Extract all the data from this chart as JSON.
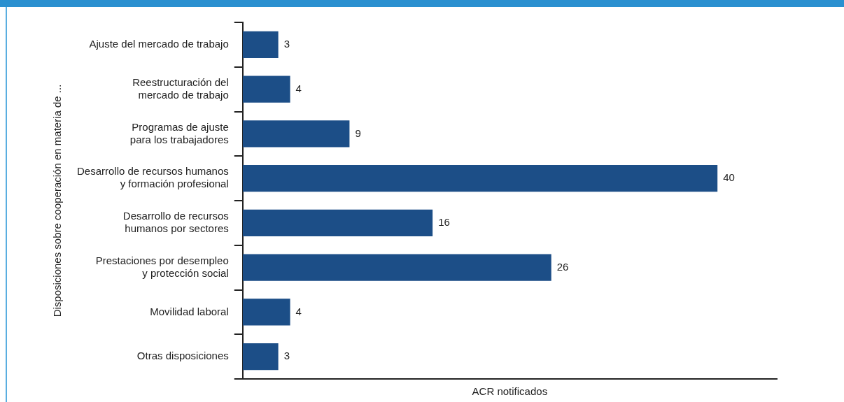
{
  "chart_data": {
    "type": "bar",
    "orientation": "horizontal",
    "ylabel": "Disposiciones sobre cooperación en materia de ...",
    "xlabel": "ACR notificados",
    "categories": [
      "Ajuste del mercado de trabajo",
      "Reestructuración del\nmercado de trabajo",
      "Programas de ajuste\npara los trabajadores",
      "Desarrollo de recursos humanos\ny formación profesional",
      "Desarrollo de recursos\nhumanos por sectores",
      "Prestaciones por desempleo\ny protección social",
      "Movilidad laboral",
      "Otras disposiciones"
    ],
    "values": [
      3,
      4,
      9,
      40,
      16,
      26,
      4,
      3
    ],
    "color": "#1c4e87",
    "data_labels": true,
    "tick_labels": "y",
    "grid": false,
    "legend": false
  }
}
